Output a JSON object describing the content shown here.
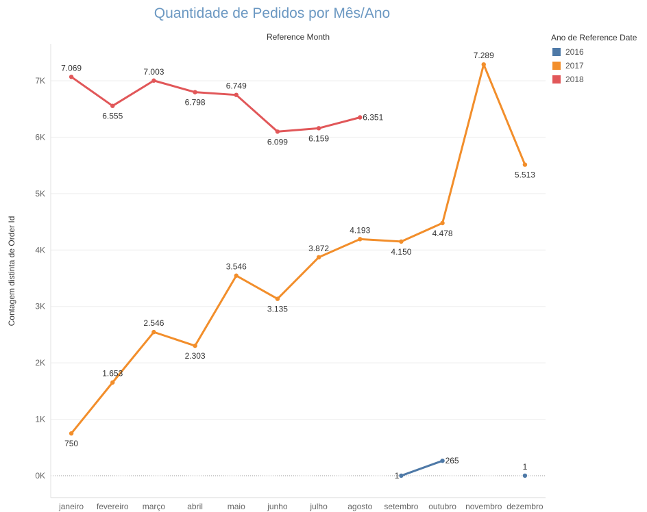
{
  "chart_data": {
    "type": "line",
    "title": "Quantidade de Pedidos por Mês/Ano",
    "column_header": "Reference Month",
    "ylabel": "Contagem distinta de Order Id",
    "categories": [
      "janeiro",
      "fevereiro",
      "março",
      "abril",
      "maio",
      "junho",
      "julho",
      "agosto",
      "setembro",
      "outubro",
      "novembro",
      "dezembro"
    ],
    "ylim": [
      0,
      7000
    ],
    "yticks": [
      0,
      1000,
      2000,
      3000,
      4000,
      5000,
      6000,
      7000
    ],
    "ytick_labels": [
      "0K",
      "1K",
      "2K",
      "3K",
      "4K",
      "5K",
      "6K",
      "7K"
    ],
    "grid": true,
    "legend": {
      "title": "Ano de Reference Date",
      "position": "top-right"
    },
    "series": [
      {
        "name": "2016",
        "color": "#4e79a7",
        "values": [
          null,
          null,
          null,
          null,
          null,
          null,
          null,
          null,
          1,
          265,
          null,
          1
        ],
        "labels": [
          "",
          "",
          "",
          "",
          "",
          "",
          "",
          "",
          "1",
          "265",
          "",
          "1"
        ]
      },
      {
        "name": "2017",
        "color": "#f28e2b",
        "values": [
          750,
          1653,
          2546,
          2303,
          3546,
          3135,
          3872,
          4193,
          4150,
          4478,
          7289,
          5513
        ],
        "labels": [
          "750",
          "1.653",
          "2.546",
          "2.303",
          "3.546",
          "3.135",
          "3.872",
          "4.193",
          "4.150",
          "4.478",
          "7.289",
          "5.513"
        ]
      },
      {
        "name": "2018",
        "color": "#e15759",
        "values": [
          7069,
          6555,
          7003,
          6798,
          6749,
          6099,
          6159,
          6351,
          null,
          null,
          null,
          null
        ],
        "labels": [
          "7.069",
          "6.555",
          "7.003",
          "6.798",
          "6.749",
          "6.099",
          "6.159",
          "6.351",
          "",
          "",
          "",
          ""
        ]
      }
    ]
  }
}
